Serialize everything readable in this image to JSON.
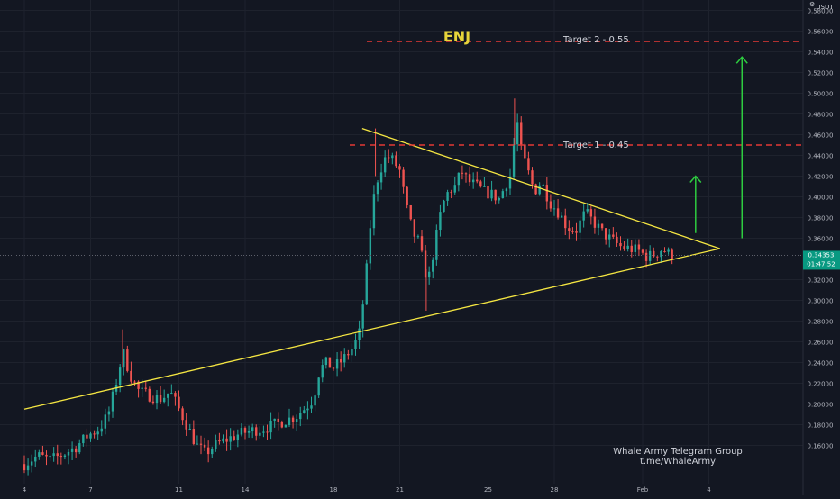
{
  "chart_data": {
    "type": "candlestick",
    "title": "ENJ",
    "currency": "USDT",
    "y_ticks": [
      "0.58000",
      "0.56000",
      "0.54000",
      "0.52000",
      "0.50000",
      "0.48000",
      "0.46000",
      "0.44000",
      "0.42000",
      "0.40000",
      "0.38000",
      "0.36000",
      "0.34000",
      "0.32000",
      "0.30000",
      "0.28000",
      "0.26000",
      "0.24000",
      "0.22000",
      "0.20000",
      "0.18000",
      "0.16000"
    ],
    "x_ticks": [
      "4",
      "7",
      "11",
      "14",
      "18",
      "21",
      "25",
      "28",
      "Feb",
      "4"
    ],
    "ylim": [
      0.145,
      0.596
    ],
    "grid": true,
    "last_price": "0.34353",
    "last_price_value": 0.34353,
    "countdown": "01:47:52",
    "annotations": {
      "target1": {
        "label": "Target 1 - 0.45",
        "price": 0.45
      },
      "target2": {
        "label": "Target 2 - 0.55",
        "price": 0.55
      }
    },
    "watermark_lines": [
      "Whale Army Telegram Group",
      "t.me/WhaleArmy"
    ],
    "trendlines": [
      {
        "name": "lower-support",
        "from_date": 4.0,
        "from_price": 0.195,
        "to_date": 35.5,
        "to_price": 0.35
      },
      {
        "name": "upper-resistance",
        "from_date": 19.3,
        "from_price": 0.466,
        "to_date": 35.5,
        "to_price": 0.35
      }
    ],
    "arrows": [
      {
        "date": 34.4,
        "from_price": 0.365,
        "to_price": 0.42
      },
      {
        "date": 36.5,
        "from_price": 0.36,
        "to_price": 0.535
      }
    ],
    "price_path": [
      [
        4.0,
        0.142
      ],
      [
        4.6,
        0.15
      ],
      [
        5.2,
        0.146
      ],
      [
        5.8,
        0.152
      ],
      [
        6.3,
        0.158
      ],
      [
        6.9,
        0.17
      ],
      [
        7.4,
        0.176
      ],
      [
        7.8,
        0.19
      ],
      [
        8.1,
        0.215
      ],
      [
        8.3,
        0.235
      ],
      [
        8.5,
        0.248
      ],
      [
        8.8,
        0.228
      ],
      [
        9.2,
        0.212
      ],
      [
        9.7,
        0.208
      ],
      [
        10.2,
        0.205
      ],
      [
        10.6,
        0.212
      ],
      [
        11.0,
        0.195
      ],
      [
        11.4,
        0.178
      ],
      [
        11.8,
        0.16
      ],
      [
        12.2,
        0.152
      ],
      [
        12.6,
        0.16
      ],
      [
        13.1,
        0.165
      ],
      [
        13.6,
        0.17
      ],
      [
        14.2,
        0.174
      ],
      [
        14.8,
        0.176
      ],
      [
        15.3,
        0.18
      ],
      [
        15.8,
        0.184
      ],
      [
        16.3,
        0.188
      ],
      [
        16.8,
        0.198
      ],
      [
        17.1,
        0.205
      ],
      [
        17.3,
        0.228
      ],
      [
        17.6,
        0.24
      ],
      [
        18.0,
        0.235
      ],
      [
        18.4,
        0.242
      ],
      [
        18.9,
        0.255
      ],
      [
        19.2,
        0.27
      ],
      [
        19.5,
        0.33
      ],
      [
        19.7,
        0.38
      ],
      [
        19.9,
        0.41
      ],
      [
        20.1,
        0.425
      ],
      [
        20.4,
        0.44
      ],
      [
        20.7,
        0.435
      ],
      [
        21.0,
        0.425
      ],
      [
        21.3,
        0.39
      ],
      [
        21.6,
        0.365
      ],
      [
        21.9,
        0.355
      ],
      [
        22.1,
        0.33
      ],
      [
        22.3,
        0.32
      ],
      [
        22.6,
        0.355
      ],
      [
        22.9,
        0.39
      ],
      [
        23.2,
        0.405
      ],
      [
        23.5,
        0.41
      ],
      [
        23.8,
        0.425
      ],
      [
        24.1,
        0.415
      ],
      [
        24.5,
        0.41
      ],
      [
        24.8,
        0.405
      ],
      [
        25.2,
        0.402
      ],
      [
        25.5,
        0.398
      ],
      [
        25.8,
        0.412
      ],
      [
        26.0,
        0.42
      ],
      [
        26.3,
        0.475
      ],
      [
        26.5,
        0.445
      ],
      [
        26.8,
        0.425
      ],
      [
        27.1,
        0.405
      ],
      [
        27.4,
        0.415
      ],
      [
        27.8,
        0.395
      ],
      [
        28.2,
        0.385
      ],
      [
        28.6,
        0.37
      ],
      [
        29.0,
        0.368
      ],
      [
        29.4,
        0.385
      ],
      [
        29.8,
        0.375
      ],
      [
        30.2,
        0.365
      ],
      [
        30.6,
        0.358
      ],
      [
        31.0,
        0.352
      ],
      [
        31.4,
        0.35
      ],
      [
        31.8,
        0.348
      ],
      [
        32.2,
        0.342
      ],
      [
        32.6,
        0.345
      ],
      [
        32.9,
        0.35
      ],
      [
        33.2,
        0.344
      ],
      [
        33.35,
        0.34353
      ]
    ]
  }
}
